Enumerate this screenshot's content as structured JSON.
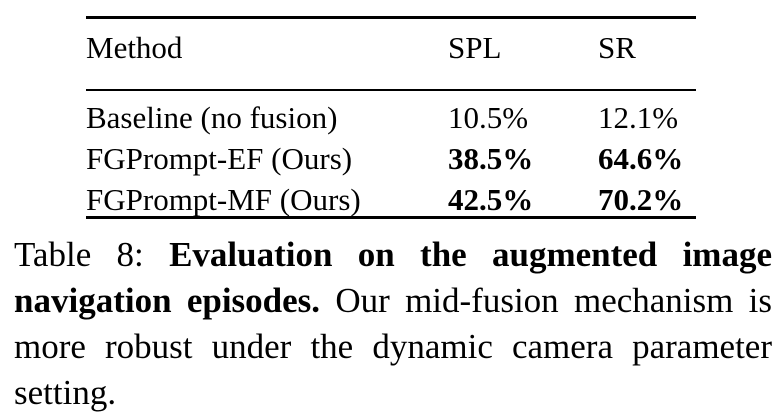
{
  "table": {
    "headers": {
      "method": "Method",
      "spl": "SPL",
      "sr": "SR"
    },
    "rows": [
      {
        "method": "Baseline (no fusion)",
        "spl": "10.5%",
        "sr": "12.1%",
        "bold": false
      },
      {
        "method": "FGPrompt-EF (Ours)",
        "spl": "38.5%",
        "sr": "64.6%",
        "bold": true
      },
      {
        "method": "FGPrompt-MF (Ours)",
        "spl": "42.5%",
        "sr": "70.2%",
        "bold": true
      }
    ]
  },
  "caption": {
    "label": "Table 8:",
    "bold_text": "Evaluation on the augmented image navigation episodes.",
    "text": "Our mid-fusion mechanism is more robust under the dynamic camera parameter setting."
  }
}
